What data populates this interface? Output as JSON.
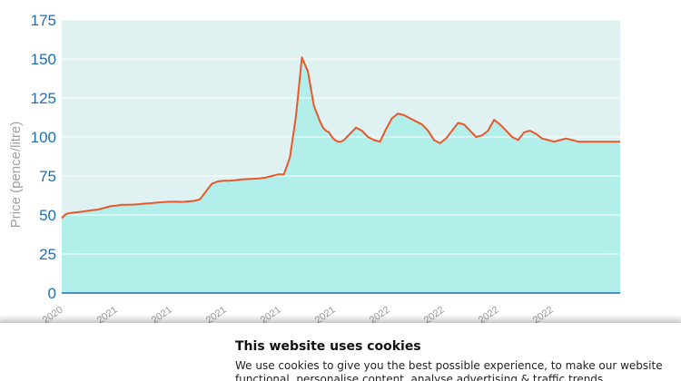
{
  "chart_data": {
    "type": "area",
    "title": "",
    "xlabel": "",
    "ylabel": "Price (pence/litre)",
    "ylim": [
      0,
      175
    ],
    "yticks": [
      "0",
      "25",
      "50",
      "75",
      "100",
      "125",
      "150",
      "175"
    ],
    "xticks": [
      ". 2020",
      "... 2021",
      "... 2021",
      "... 2021",
      "... 2021",
      "... 2021",
      "... 2022",
      "... 2022",
      "... 2022",
      "... 2022"
    ],
    "grid": true,
    "colors": {
      "line": "#e8582a",
      "fill": "#b2eeea",
      "plot_bg": "#dff1f1",
      "axis": "#1f6fb5"
    },
    "x": [
      0,
      1,
      2,
      4,
      6,
      8,
      10,
      12,
      14,
      16,
      18,
      20,
      21,
      22,
      24,
      26,
      28,
      30,
      32,
      34,
      36,
      38,
      40,
      42,
      44,
      46,
      48,
      50,
      52,
      54,
      56,
      58,
      60,
      62,
      64,
      66,
      68,
      70,
      72,
      74,
      76,
      78,
      80,
      82,
      84,
      86,
      87,
      88,
      89,
      90,
      91,
      92,
      93,
      94,
      96,
      98,
      100,
      102,
      104,
      106,
      108,
      110,
      112,
      114,
      116,
      118,
      120,
      122,
      124,
      126,
      128,
      130,
      132,
      134,
      136,
      138,
      140,
      142,
      144,
      146,
      148,
      150,
      152,
      154,
      156,
      158,
      160,
      162,
      164,
      166,
      168,
      170,
      172,
      174,
      176,
      178,
      180,
      182,
      184,
      186
    ],
    "values": [
      48,
      50,
      51,
      51.5,
      52,
      52.5,
      53,
      53.5,
      54.5,
      55.5,
      56,
      56.5,
      56.5,
      56.5,
      56.7,
      57,
      57.3,
      57.6,
      58,
      58.3,
      58.5,
      58.5,
      58.4,
      58.7,
      59,
      60,
      65,
      70,
      71.5,
      72,
      72,
      72.3,
      72.8,
      73,
      73.2,
      73.5,
      74,
      75,
      76,
      76,
      87,
      113,
      151,
      142,
      120,
      110,
      106,
      104,
      103,
      100,
      98,
      97,
      97,
      98,
      102,
      106,
      104,
      100,
      98,
      97,
      105,
      112,
      115,
      114,
      112,
      110,
      108,
      104,
      98,
      96,
      99,
      104,
      109,
      108,
      104,
      100,
      101,
      104,
      111,
      108,
      104,
      100,
      98,
      103,
      104,
      102,
      99,
      98,
      97,
      98,
      99,
      98,
      97,
      97,
      97,
      97,
      97,
      97,
      97,
      97
    ]
  },
  "cookie_banner": {
    "title": "This website uses cookies",
    "text": "We use cookies to give you the best possible experience, to make our website functional, personalise content, analyse advertising & traffic trends."
  }
}
